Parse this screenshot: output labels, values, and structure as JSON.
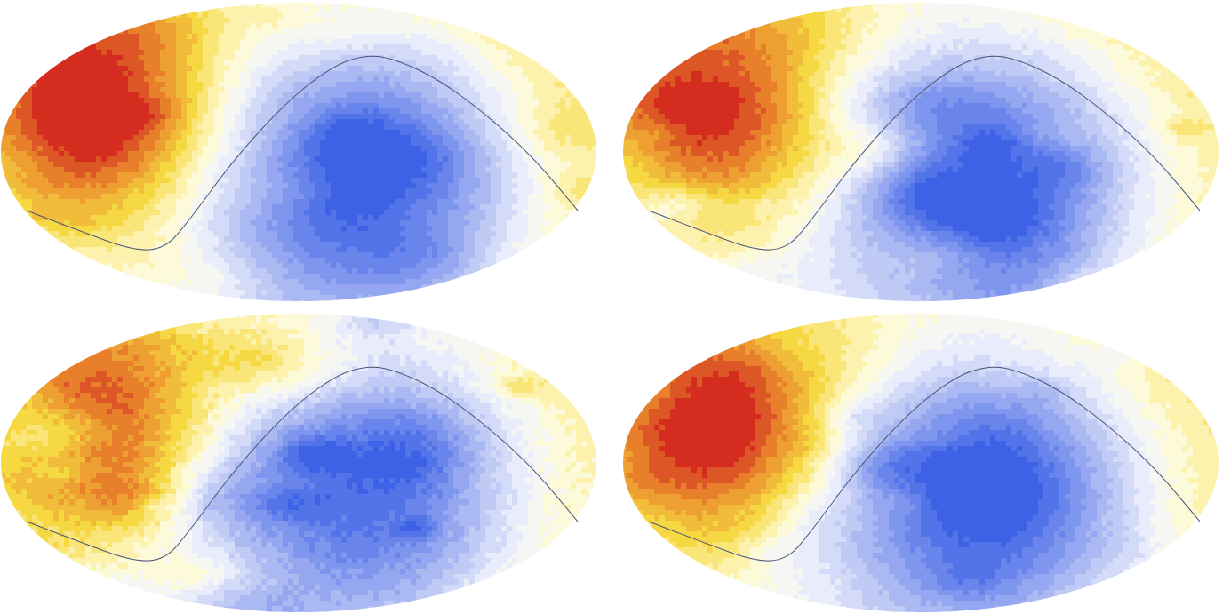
{
  "maps": [
    {
      "id": "top-left",
      "dipole_strength": 1.0,
      "noise": 0.25,
      "seed": 11
    },
    {
      "id": "top-right",
      "dipole_strength": 0.88,
      "noise": 0.3,
      "seed": 23
    },
    {
      "id": "bottom-left",
      "dipole_strength": 0.85,
      "noise": 0.45,
      "seed": 37
    },
    {
      "id": "bottom-right",
      "dipole_strength": 1.0,
      "noise": 0.28,
      "seed": 53
    }
  ],
  "colors": {
    "hot_max": "#d42d1f",
    "hot_mid": "#e9892c",
    "warm": "#f6d740",
    "pale": "#fffbd0",
    "neutral": "#f3f5fd",
    "cool": "#a9b8f2",
    "cold_max": "#3d62e6",
    "curve": "#4b5577"
  }
}
